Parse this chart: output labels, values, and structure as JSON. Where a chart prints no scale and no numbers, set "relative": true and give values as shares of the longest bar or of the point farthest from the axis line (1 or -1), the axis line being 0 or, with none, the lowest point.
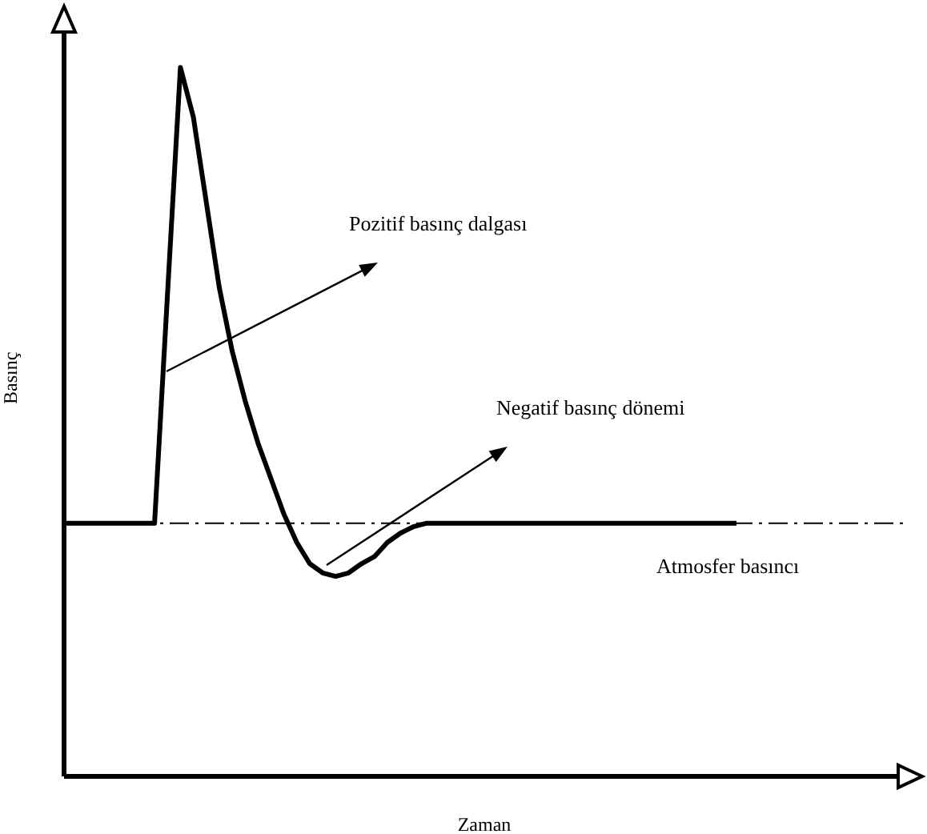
{
  "chart_data": {
    "type": "line",
    "relative": true,
    "xlabel": "Zaman",
    "ylabel": "Basınç",
    "categories": [
      null,
      null,
      null,
      null,
      null,
      null,
      null,
      null,
      null,
      null,
      null,
      null,
      null,
      null,
      null,
      null,
      null,
      null,
      null,
      null,
      null,
      null,
      null,
      null,
      null,
      null,
      null,
      null,
      null,
      null,
      null,
      null,
      null,
      null,
      null,
      null,
      null,
      null,
      null,
      null,
      null,
      null,
      null,
      null,
      null,
      null,
      null,
      null,
      null,
      null,
      null,
      null,
      null,
      null,
      null,
      null,
      null,
      null,
      null,
      null,
      null,
      null,
      null,
      null,
      null,
      null
    ],
    "series": [
      {
        "color": "#000000",
        "values": [
          0.357,
          0.357,
          0.357,
          0.357,
          0.357,
          0.357,
          0.357,
          0.357,
          0.68,
          1,
          0.93,
          0.81,
          0.69,
          0.6,
          0.53,
          0.47,
          0.42,
          0.37,
          0.33,
          0.3,
          0.287,
          0.282,
          0.287,
          0.3,
          0.31,
          0.33,
          0.343,
          0.352,
          0.357,
          0.357,
          0.357,
          0.357,
          0.357,
          0.357,
          0.357,
          0.357,
          0.357,
          0.357,
          0.357,
          0.357,
          0.357,
          0.357,
          0.357,
          0.357,
          0.357,
          0.357,
          0.357,
          0.357,
          0.357,
          0.357,
          0.357,
          0.357,
          0.357,
          null,
          null,
          null,
          null,
          null,
          null,
          null,
          null,
          null,
          null,
          null,
          null,
          null
        ]
      }
    ],
    "ref_lines": [
      {
        "axis": "y",
        "value": 0.357,
        "label": "Atmosfer basıncı",
        "color": "#000000",
        "line_style": "dashed"
      }
    ],
    "annotations": [
      "Pozitif basınç dalgası",
      "Negatif basınç dönemi"
    ],
    "grid": false,
    "legend": false,
    "marker": "none",
    "line_style": "solid"
  }
}
